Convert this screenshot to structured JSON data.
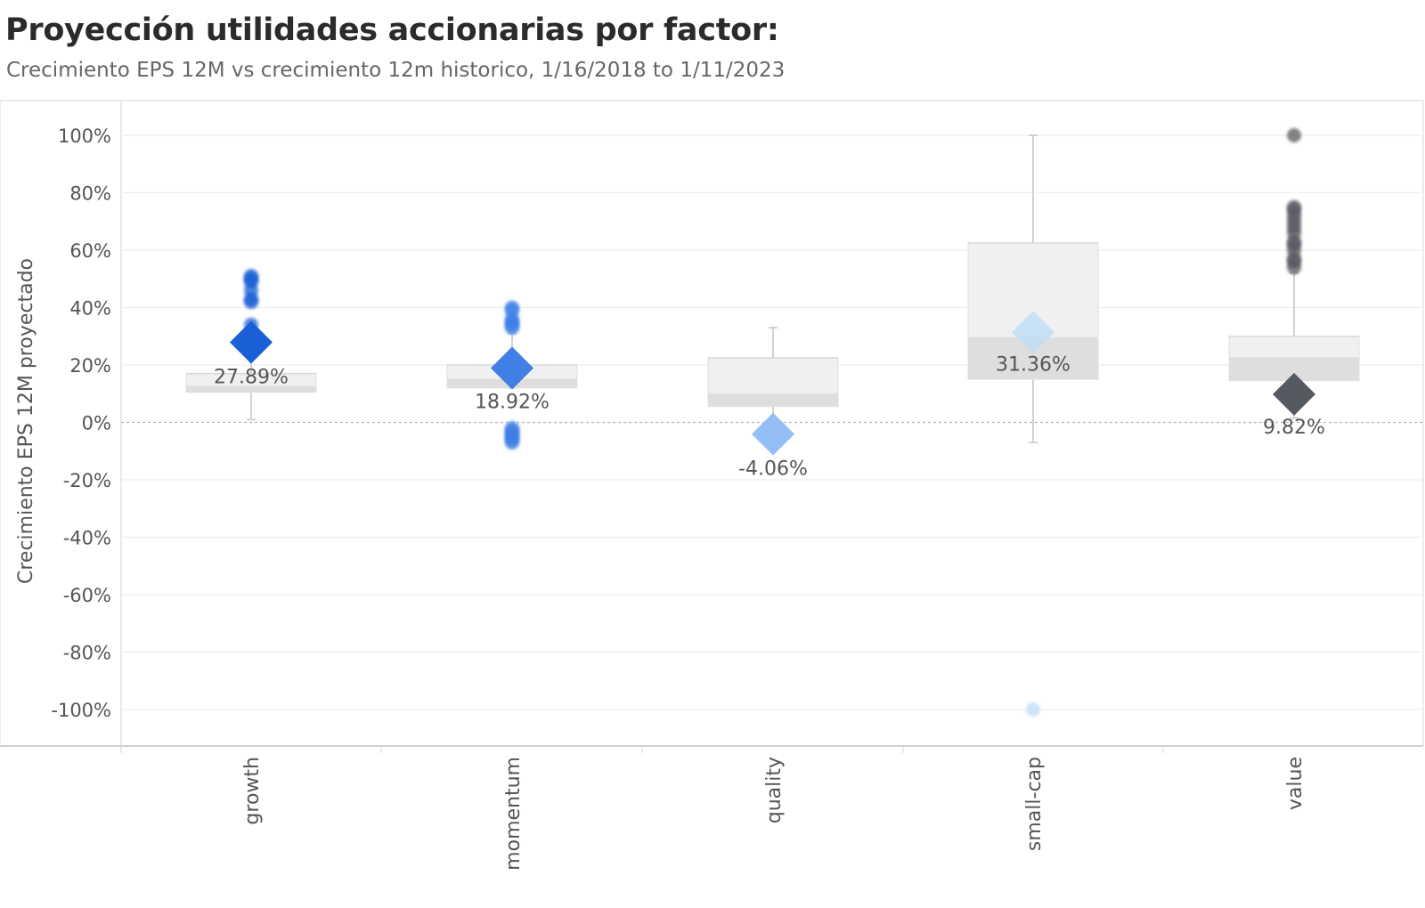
{
  "chart_data": {
    "type": "boxplot",
    "title": "Proyección utilidades accionarias por factor:",
    "subtitle": "Crecimiento EPS 12M vs crecimiento 12m historico, 1/16/2018 to 1/11/2023",
    "ylabel": "Crecimiento EPS 12M proyectado",
    "xlabel": "",
    "ylim": [
      -110,
      112
    ],
    "yticks": [
      100,
      80,
      60,
      40,
      20,
      0,
      -20,
      -40,
      -60,
      -80,
      -100
    ],
    "ytick_labels": [
      "100%",
      "80%",
      "60%",
      "40%",
      "20%",
      "0%",
      "-20%",
      "-40%",
      "-60%",
      "-80%",
      "-100%"
    ],
    "grid": true,
    "zero_line": true,
    "categories": [
      "growth",
      "momentum",
      "quality",
      "small-cap",
      "value"
    ],
    "series": [
      {
        "category": "growth",
        "color": "#1a5fd6",
        "whisker_low": 1,
        "q1": 10.5,
        "median": 12.5,
        "q3": 17,
        "whisker_high": 26,
        "outliers": [
          34,
          42,
          43,
          46,
          49,
          50,
          51
        ],
        "projection": 27.89,
        "projection_label": "27.89%"
      },
      {
        "category": "momentum",
        "color": "#3f7fe6",
        "whisker_low": 12,
        "q1": 12,
        "median": 15,
        "q3": 20,
        "whisker_high": 31,
        "outliers": [
          -7,
          -6,
          -5,
          -4,
          -3,
          -2,
          33,
          34,
          35,
          36,
          39,
          40
        ],
        "projection": 18.92,
        "projection_label": "18.92%"
      },
      {
        "category": "quality",
        "color": "#93bff6",
        "whisker_low": -3.5,
        "q1": 5.5,
        "median": 10,
        "q3": 22.5,
        "whisker_high": 33,
        "outliers": [],
        "projection": -4.06,
        "projection_label": "-4.06%"
      },
      {
        "category": "small-cap",
        "color": "#bcdcf6",
        "whisker_low": -7,
        "q1": 15,
        "median": 29.5,
        "q3": 62.5,
        "whisker_high": 100,
        "outliers": [
          -100
        ],
        "projection": 31.36,
        "projection_label": "31.36%"
      },
      {
        "category": "value",
        "color": "#555a60",
        "whisker_low": 1.5,
        "q1": 14.5,
        "median": 22.5,
        "q3": 30,
        "whisker_high": 52,
        "outliers": [
          54,
          56,
          57,
          60,
          62,
          63,
          66,
          68,
          70,
          72,
          74,
          75,
          100
        ],
        "projection": 9.82,
        "projection_label": "9.82%"
      }
    ]
  }
}
